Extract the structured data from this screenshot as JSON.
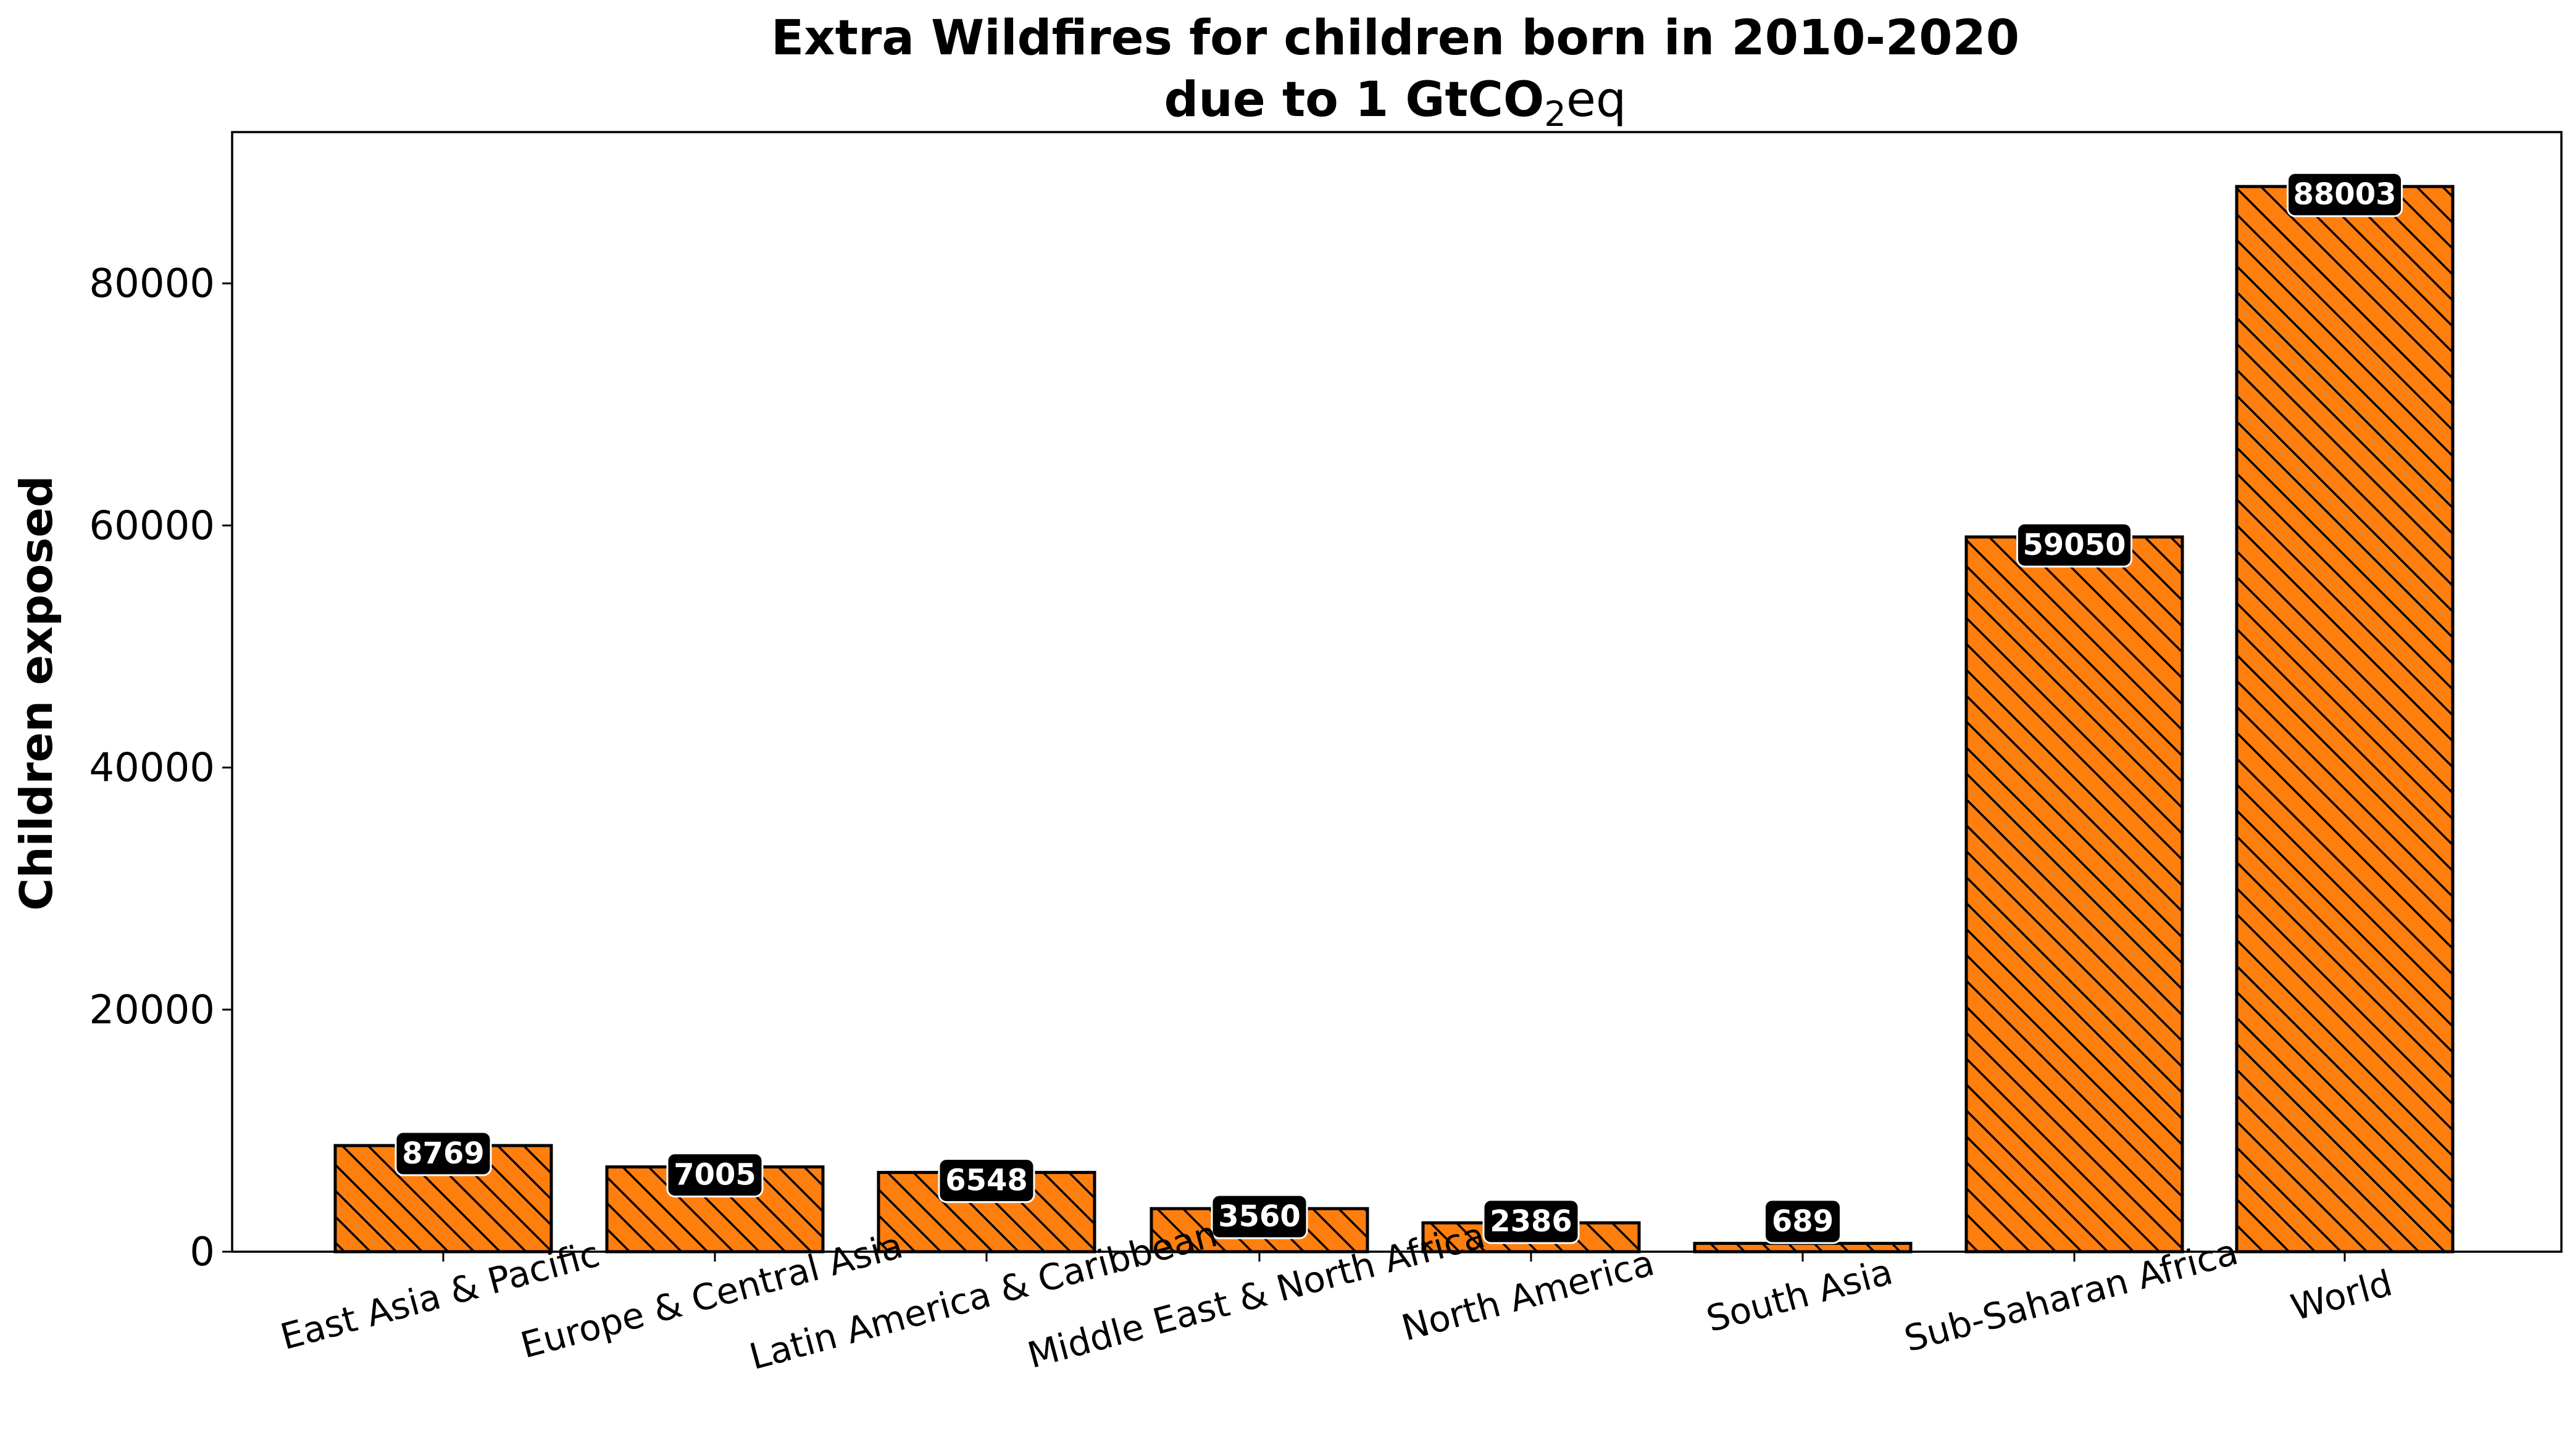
{
  "chart_data": {
    "type": "bar",
    "title": "Extra Wildfires for children born in 2010-2020",
    "subtitle": "due to 1 GtCO",
    "subtitle_sub": "2",
    "subtitle_suffix": "eq",
    "xlabel": "",
    "ylabel": "Children exposed",
    "ylim": [
      0,
      92500
    ],
    "yticks": [
      0,
      20000,
      40000,
      60000,
      80000
    ],
    "ytick_labels": [
      "0",
      "20000",
      "40000",
      "60000",
      "80000"
    ],
    "grid": false,
    "categories": [
      "East Asia & Pacific",
      "Europe & Central Asia",
      "Latin America & Caribbean",
      "Middle East & North Africa",
      "North America",
      "South Asia",
      "Sub-Saharan Africa",
      "World"
    ],
    "values": [
      8769,
      7005,
      6548,
      3560,
      2386,
      689,
      59050,
      88003
    ],
    "value_labels": [
      "8769",
      "7005",
      "6548",
      "3560",
      "2386",
      "689",
      "59050",
      "88003"
    ],
    "bar_color": "#ff7f0e",
    "bar_hatch": "\\\\",
    "label_box_color": "#000000",
    "label_text_color": "#ffffff"
  }
}
